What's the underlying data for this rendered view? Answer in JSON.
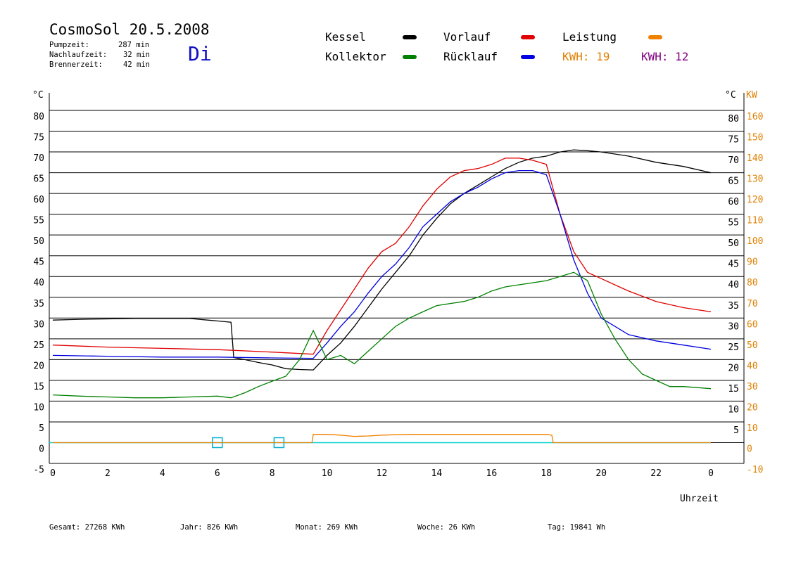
{
  "header": {
    "title": "CosmoSol 20.5.2008",
    "day": "Di",
    "stats": [
      {
        "label": "Pumpzeit:",
        "value": "287 min"
      },
      {
        "label": "Nachlaufzeit:",
        "value": "32 min"
      },
      {
        "label": "Brennerzeit:",
        "value": "42 min"
      }
    ]
  },
  "legend": {
    "items": [
      {
        "label": "Kessel",
        "color": "#000000"
      },
      {
        "label": "Vorlauf",
        "color": "#e00000"
      },
      {
        "label": "Leistung",
        "color": "#f08000"
      },
      {
        "label": "Kollektor",
        "color": "#008000"
      },
      {
        "label": "Rücklauf",
        "color": "#0000e0"
      }
    ],
    "kwh_orange": "KWH: 19",
    "kwh_purple": "KWH: 12",
    "kwh_orange_color": "#e08000",
    "kwh_purple_color": "#800080"
  },
  "footer": {
    "gesamt": "Gesamt:  27268 KWh",
    "jahr": "Jahr:    826 KWh",
    "monat": "Monat:    269 KWh",
    "woche": "Woche:     26 KWh",
    "tag": "Tag:  19841 Wh"
  },
  "chart_data": {
    "type": "line",
    "xlabel": "Uhrzeit",
    "ylabel_left": "°C",
    "ylabel_right_1": "°C",
    "ylabel_right_2": "KW",
    "xlim": [
      0,
      24
    ],
    "ylim": [
      -5,
      80
    ],
    "x_ticks": [
      "0",
      "2",
      "4",
      "6",
      "8",
      "10",
      "12",
      "14",
      "16",
      "18",
      "20",
      "22",
      "0"
    ],
    "y_ticks_left": [
      "80",
      "75",
      "70",
      "65",
      "60",
      "55",
      "50",
      "45",
      "40",
      "35",
      "30",
      "25",
      "20",
      "15",
      "10",
      "5",
      "0",
      "-5"
    ],
    "y_ticks_right_c": [
      "80",
      "75",
      "70",
      "65",
      "60",
      "55",
      "50",
      "45",
      "40",
      "35",
      "30",
      "25",
      "20",
      "15",
      "10",
      "5"
    ],
    "y_ticks_right_kw": [
      "160",
      "150",
      "140",
      "130",
      "120",
      "110",
      "100",
      "90",
      "80",
      "70",
      "60",
      "50",
      "40",
      "30",
      "20",
      "10",
      "0",
      "-10"
    ],
    "grid": "horizontal",
    "series": [
      {
        "name": "Kessel",
        "color": "#000000",
        "x": [
          0,
          1,
          2,
          3,
          4,
          5,
          5.5,
          6,
          6.5,
          6.6,
          7,
          7.5,
          8,
          8.5,
          9,
          9.5,
          10,
          10.5,
          11,
          11.5,
          12,
          12.5,
          13,
          13.5,
          14,
          14.5,
          15,
          15.5,
          16,
          16.5,
          17,
          17.5,
          18,
          18.5,
          19,
          19.5,
          20,
          21,
          22,
          23,
          24
        ],
        "y": [
          29.5,
          29.7,
          29.8,
          29.9,
          29.9,
          29.9,
          29.6,
          29.3,
          29.0,
          20.5,
          20.0,
          19.3,
          18.7,
          17.8,
          17.6,
          17.5,
          21.0,
          24.0,
          28.0,
          32.5,
          37.0,
          41.0,
          45.0,
          50.0,
          54.0,
          57.5,
          60.0,
          62.0,
          64.0,
          66.0,
          67.5,
          68.5,
          69.0,
          70.0,
          70.5,
          70.3,
          70.0,
          69.0,
          67.5,
          66.5,
          65.0
        ]
      },
      {
        "name": "Vorlauf",
        "color": "#e00000",
        "x": [
          0,
          2,
          4,
          6,
          8,
          9.5,
          10,
          10.5,
          11,
          11.5,
          12,
          12.5,
          13,
          13.5,
          14,
          14.5,
          15,
          15.5,
          16,
          16.5,
          17,
          17.5,
          18,
          18.5,
          19,
          19.5,
          20,
          21,
          22,
          23,
          24
        ],
        "y": [
          23.5,
          23.0,
          22.7,
          22.4,
          21.8,
          21.3,
          27.0,
          32.0,
          37.0,
          42.0,
          46.0,
          48.0,
          52.0,
          57.0,
          61.0,
          64.0,
          65.5,
          66.0,
          67.0,
          68.5,
          68.5,
          68.0,
          67.0,
          55.0,
          46.0,
          41.0,
          39.5,
          36.5,
          34.0,
          32.5,
          31.5
        ]
      },
      {
        "name": "Rücklauf",
        "color": "#0000e0",
        "x": [
          0,
          2,
          4,
          6,
          8,
          9.5,
          10,
          10.5,
          11,
          11.5,
          12,
          12.5,
          13,
          13.5,
          14,
          14.5,
          15,
          15.5,
          16,
          16.5,
          17,
          17.5,
          18,
          18.5,
          19,
          19.5,
          20,
          21,
          22,
          23,
          24
        ],
        "y": [
          21.0,
          20.8,
          20.6,
          20.6,
          20.4,
          20.3,
          24.0,
          28.0,
          31.5,
          36.0,
          40.0,
          43.0,
          47.0,
          52.0,
          55.0,
          58.0,
          60.0,
          61.5,
          63.5,
          65.0,
          65.5,
          65.5,
          64.5,
          55.0,
          44.0,
          36.0,
          30.0,
          26.0,
          24.5,
          23.5,
          22.5
        ]
      },
      {
        "name": "Kollektor",
        "color": "#008000",
        "x": [
          0,
          1,
          2,
          3,
          4,
          5,
          6,
          6.5,
          7,
          7.5,
          8,
          8.5,
          9,
          9.5,
          10,
          10.5,
          11,
          11.5,
          12,
          12.5,
          13,
          13.5,
          14,
          14.5,
          15,
          15.5,
          16,
          16.5,
          17,
          17.5,
          18,
          18.5,
          19,
          19.5,
          20,
          20.5,
          21,
          21.5,
          22,
          22.5,
          23,
          24
        ],
        "y": [
          11.5,
          11.2,
          11.0,
          10.8,
          10.8,
          11.0,
          11.2,
          10.8,
          12.0,
          13.5,
          14.8,
          16.0,
          20.0,
          27.0,
          20.0,
          21.0,
          19.0,
          22.0,
          25.0,
          28.0,
          30.0,
          31.5,
          33.0,
          33.5,
          34.0,
          35.0,
          36.5,
          37.5,
          38.0,
          38.5,
          39.0,
          40.0,
          41.0,
          39.0,
          31.0,
          25.0,
          20.0,
          16.5,
          15.0,
          13.5,
          13.5,
          13.0
        ]
      },
      {
        "name": "Leistung",
        "color": "#f08000",
        "x": [
          0,
          9.45,
          9.5,
          10,
          10.5,
          11,
          11.5,
          12,
          12.5,
          13,
          13.5,
          14,
          14.5,
          15,
          15.5,
          16,
          16.5,
          17,
          17.5,
          18,
          18.2,
          18.25,
          24
        ],
        "y": [
          0,
          0,
          2.0,
          2.0,
          1.8,
          1.5,
          1.6,
          1.8,
          1.9,
          2.0,
          2.0,
          2.0,
          2.0,
          2.0,
          2.0,
          2.0,
          2.0,
          2.0,
          2.0,
          2.0,
          1.8,
          0,
          0
        ]
      }
    ]
  }
}
